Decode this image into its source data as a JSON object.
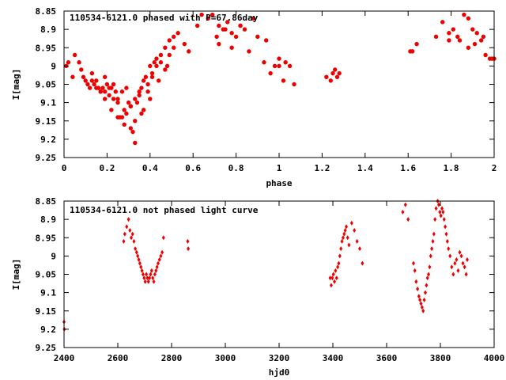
{
  "chart_data": [
    {
      "type": "scatter",
      "title": "110534-6121.0 phased with P=67.86day",
      "xlabel": "phase",
      "ylabel": "I[mag]",
      "xlim": [
        0,
        2
      ],
      "ylim": [
        9.25,
        8.85
      ],
      "y_inverted": true,
      "xticks": [
        "0",
        "0.2",
        "0.4",
        "0.6",
        "0.8",
        "1",
        "1.2",
        "1.4",
        "1.6",
        "1.8",
        "2"
      ],
      "yticks": [
        "8.85",
        "8.9",
        "8.95",
        "9",
        "9.05",
        "9.1",
        "9.15",
        "9.2",
        "9.25"
      ],
      "marker": "filled-circle",
      "color": "#ee0000",
      "series": [
        {
          "x": [
            0.01,
            0.02,
            0.04,
            0.05,
            0.07,
            0.08,
            0.09,
            0.1,
            0.11,
            0.12,
            0.13,
            0.14,
            0.15,
            0.16,
            0.17,
            0.18,
            0.19,
            0.2,
            0.21,
            0.22,
            0.23,
            0.24,
            0.25,
            0.26,
            0.27,
            0.28,
            0.29,
            0.3,
            0.31,
            0.32,
            0.33,
            0.34,
            0.35,
            0.36,
            0.37,
            0.38,
            0.39,
            0.4,
            0.41,
            0.42,
            0.43,
            0.45,
            0.47,
            0.49,
            0.51,
            0.53,
            0.56,
            0.58,
            0.62,
            0.64,
            0.67,
            0.69,
            0.71,
            0.72,
            0.74,
            0.76,
            0.78,
            0.8,
            0.82,
            0.84,
            0.86,
            0.9,
            0.93,
            0.96,
            0.98,
            1.0,
            1.02,
            1.05,
            1.07,
            1.22,
            1.24,
            1.26,
            1.28,
            1.61,
            1.64,
            1.73,
            1.76,
            1.79,
            1.81,
            1.84,
            1.86,
            1.88,
            1.9,
            1.92,
            1.94,
            1.96,
            1.98,
            2.0,
            0.13,
            0.15,
            0.17,
            0.19,
            0.21,
            0.23,
            0.25,
            0.27,
            0.29,
            0.31,
            0.33,
            0.35,
            0.37,
            0.39,
            0.41,
            0.43,
            0.45,
            0.47,
            0.49,
            0.51,
            0.19,
            0.22,
            0.25,
            0.28,
            0.31,
            0.33,
            0.36,
            0.4,
            0.44,
            0.48,
            0.72,
            0.75,
            0.78,
            0.82,
            0.88,
            0.94,
            1.0,
            1.03,
            1.25,
            1.27,
            1.62,
            1.79,
            1.83,
            1.88,
            1.91,
            1.95,
            1.99
          ],
          "y": [
            9.0,
            8.99,
            9.03,
            8.97,
            8.99,
            9.01,
            9.03,
            9.04,
            9.05,
            9.06,
            9.04,
            9.05,
            9.06,
            9.06,
            9.07,
            9.06,
            9.07,
            9.05,
            9.08,
            9.06,
            9.09,
            9.07,
            9.1,
            9.14,
            9.14,
            9.12,
            9.13,
            9.1,
            9.11,
            9.18,
            9.21,
            9.1,
            9.08,
            9.06,
            9.04,
            9.03,
            9.05,
            9.0,
            9.02,
            8.99,
            8.98,
            8.97,
            8.95,
            8.93,
            8.92,
            8.91,
            8.94,
            8.96,
            8.89,
            8.86,
            8.87,
            8.86,
            8.92,
            8.94,
            8.9,
            8.88,
            8.95,
            8.92,
            8.89,
            8.9,
            8.96,
            8.92,
            8.99,
            9.02,
            9.0,
            9.0,
            9.04,
            9.0,
            9.05,
            9.03,
            9.04,
            9.01,
            9.02,
            8.96,
            8.94,
            8.92,
            8.88,
            8.91,
            8.9,
            8.93,
            8.86,
            8.87,
            8.9,
            8.91,
            8.93,
            8.97,
            8.98,
            8.98,
            9.02,
            9.04,
            9.07,
            9.03,
            9.06,
            9.05,
            9.09,
            9.07,
            9.06,
            9.11,
            9.09,
            9.07,
            9.12,
            9.07,
            9.03,
            9.0,
            8.99,
            9.01,
            8.97,
            8.95,
            9.09,
            9.12,
            9.14,
            9.16,
            9.17,
            9.15,
            9.13,
            9.09,
            9.04,
            9.0,
            8.89,
            8.9,
            8.91,
            8.89,
            8.87,
            8.93,
            8.98,
            8.99,
            9.02,
            9.03,
            8.96,
            8.93,
            8.92,
            8.95,
            8.94,
            8.92,
            8.98
          ]
        }
      ]
    },
    {
      "type": "scatter",
      "title": "110534-6121.0 not phased light curve",
      "xlabel": "hjd0",
      "ylabel": "I[mag]",
      "xlim": [
        2400,
        4000
      ],
      "ylim": [
        9.25,
        8.85
      ],
      "y_inverted": true,
      "xticks": [
        "2400",
        "2600",
        "2800",
        "3000",
        "3200",
        "3400",
        "3600",
        "3800",
        "4000"
      ],
      "yticks": [
        "8.85",
        "8.9",
        "8.95",
        "9",
        "9.05",
        "9.1",
        "9.15",
        "9.2",
        "9.25"
      ],
      "marker": "diamond",
      "color": "#ee0000",
      "series": [
        {
          "x": [
            2400,
            2401,
            2622,
            2626,
            2633,
            2640,
            2645,
            2650,
            2655,
            2660,
            2665,
            2670,
            2674,
            2678,
            2682,
            2686,
            2690,
            2694,
            2698,
            2702,
            2706,
            2710,
            2714,
            2718,
            2722,
            2726,
            2730,
            2734,
            2738,
            2742,
            2746,
            2750,
            2755,
            2760,
            2765,
            2770,
            2860,
            2862,
            3390,
            3394,
            3398,
            3402,
            3406,
            3410,
            3414,
            3418,
            3422,
            3426,
            3430,
            3434,
            3438,
            3442,
            3446,
            3450,
            3455,
            3460,
            3470,
            3480,
            3490,
            3500,
            3510,
            3660,
            3670,
            3680,
            3700,
            3705,
            3710,
            3715,
            3720,
            3724,
            3728,
            3732,
            3736,
            3740,
            3744,
            3748,
            3752,
            3756,
            3760,
            3764,
            3768,
            3772,
            3776,
            3780,
            3784,
            3790,
            3794,
            3798,
            3802,
            3806,
            3810,
            3814,
            3818,
            3822,
            3826,
            3830,
            3836,
            3842,
            3848,
            3854,
            3860,
            3866,
            3872,
            3878,
            3884,
            3890,
            3896,
            3900
          ],
          "y": [
            9.18,
            9.2,
            8.96,
            8.94,
            8.92,
            8.9,
            8.93,
            8.95,
            8.94,
            8.96,
            8.98,
            8.99,
            9.0,
            9.01,
            9.02,
            9.03,
            9.04,
            9.05,
            9.06,
            9.07,
            9.05,
            9.06,
            9.07,
            9.06,
            9.05,
            9.04,
            9.06,
            9.07,
            9.05,
            9.04,
            9.03,
            9.02,
            9.01,
            9.0,
            8.99,
            8.95,
            8.96,
            8.98,
            9.06,
            9.08,
            9.06,
            9.05,
            9.07,
            9.04,
            9.06,
            9.03,
            9.02,
            9.0,
            8.98,
            8.96,
            8.95,
            8.94,
            8.93,
            8.92,
            8.95,
            8.97,
            8.91,
            8.93,
            8.96,
            8.98,
            9.02,
            8.88,
            8.86,
            8.9,
            9.02,
            9.04,
            9.07,
            9.09,
            9.11,
            9.12,
            9.13,
            9.14,
            9.15,
            9.12,
            9.1,
            9.08,
            9.06,
            9.05,
            9.03,
            9.0,
            8.98,
            8.96,
            8.94,
            8.9,
            8.87,
            8.85,
            8.86,
            8.88,
            8.89,
            8.87,
            8.88,
            8.9,
            8.92,
            8.94,
            8.96,
            8.98,
            9.0,
            9.03,
            9.05,
            9.02,
            9.01,
            9.04,
            8.99,
            9.0,
            9.02,
            9.03,
            9.05,
            9.01
          ]
        }
      ]
    }
  ]
}
